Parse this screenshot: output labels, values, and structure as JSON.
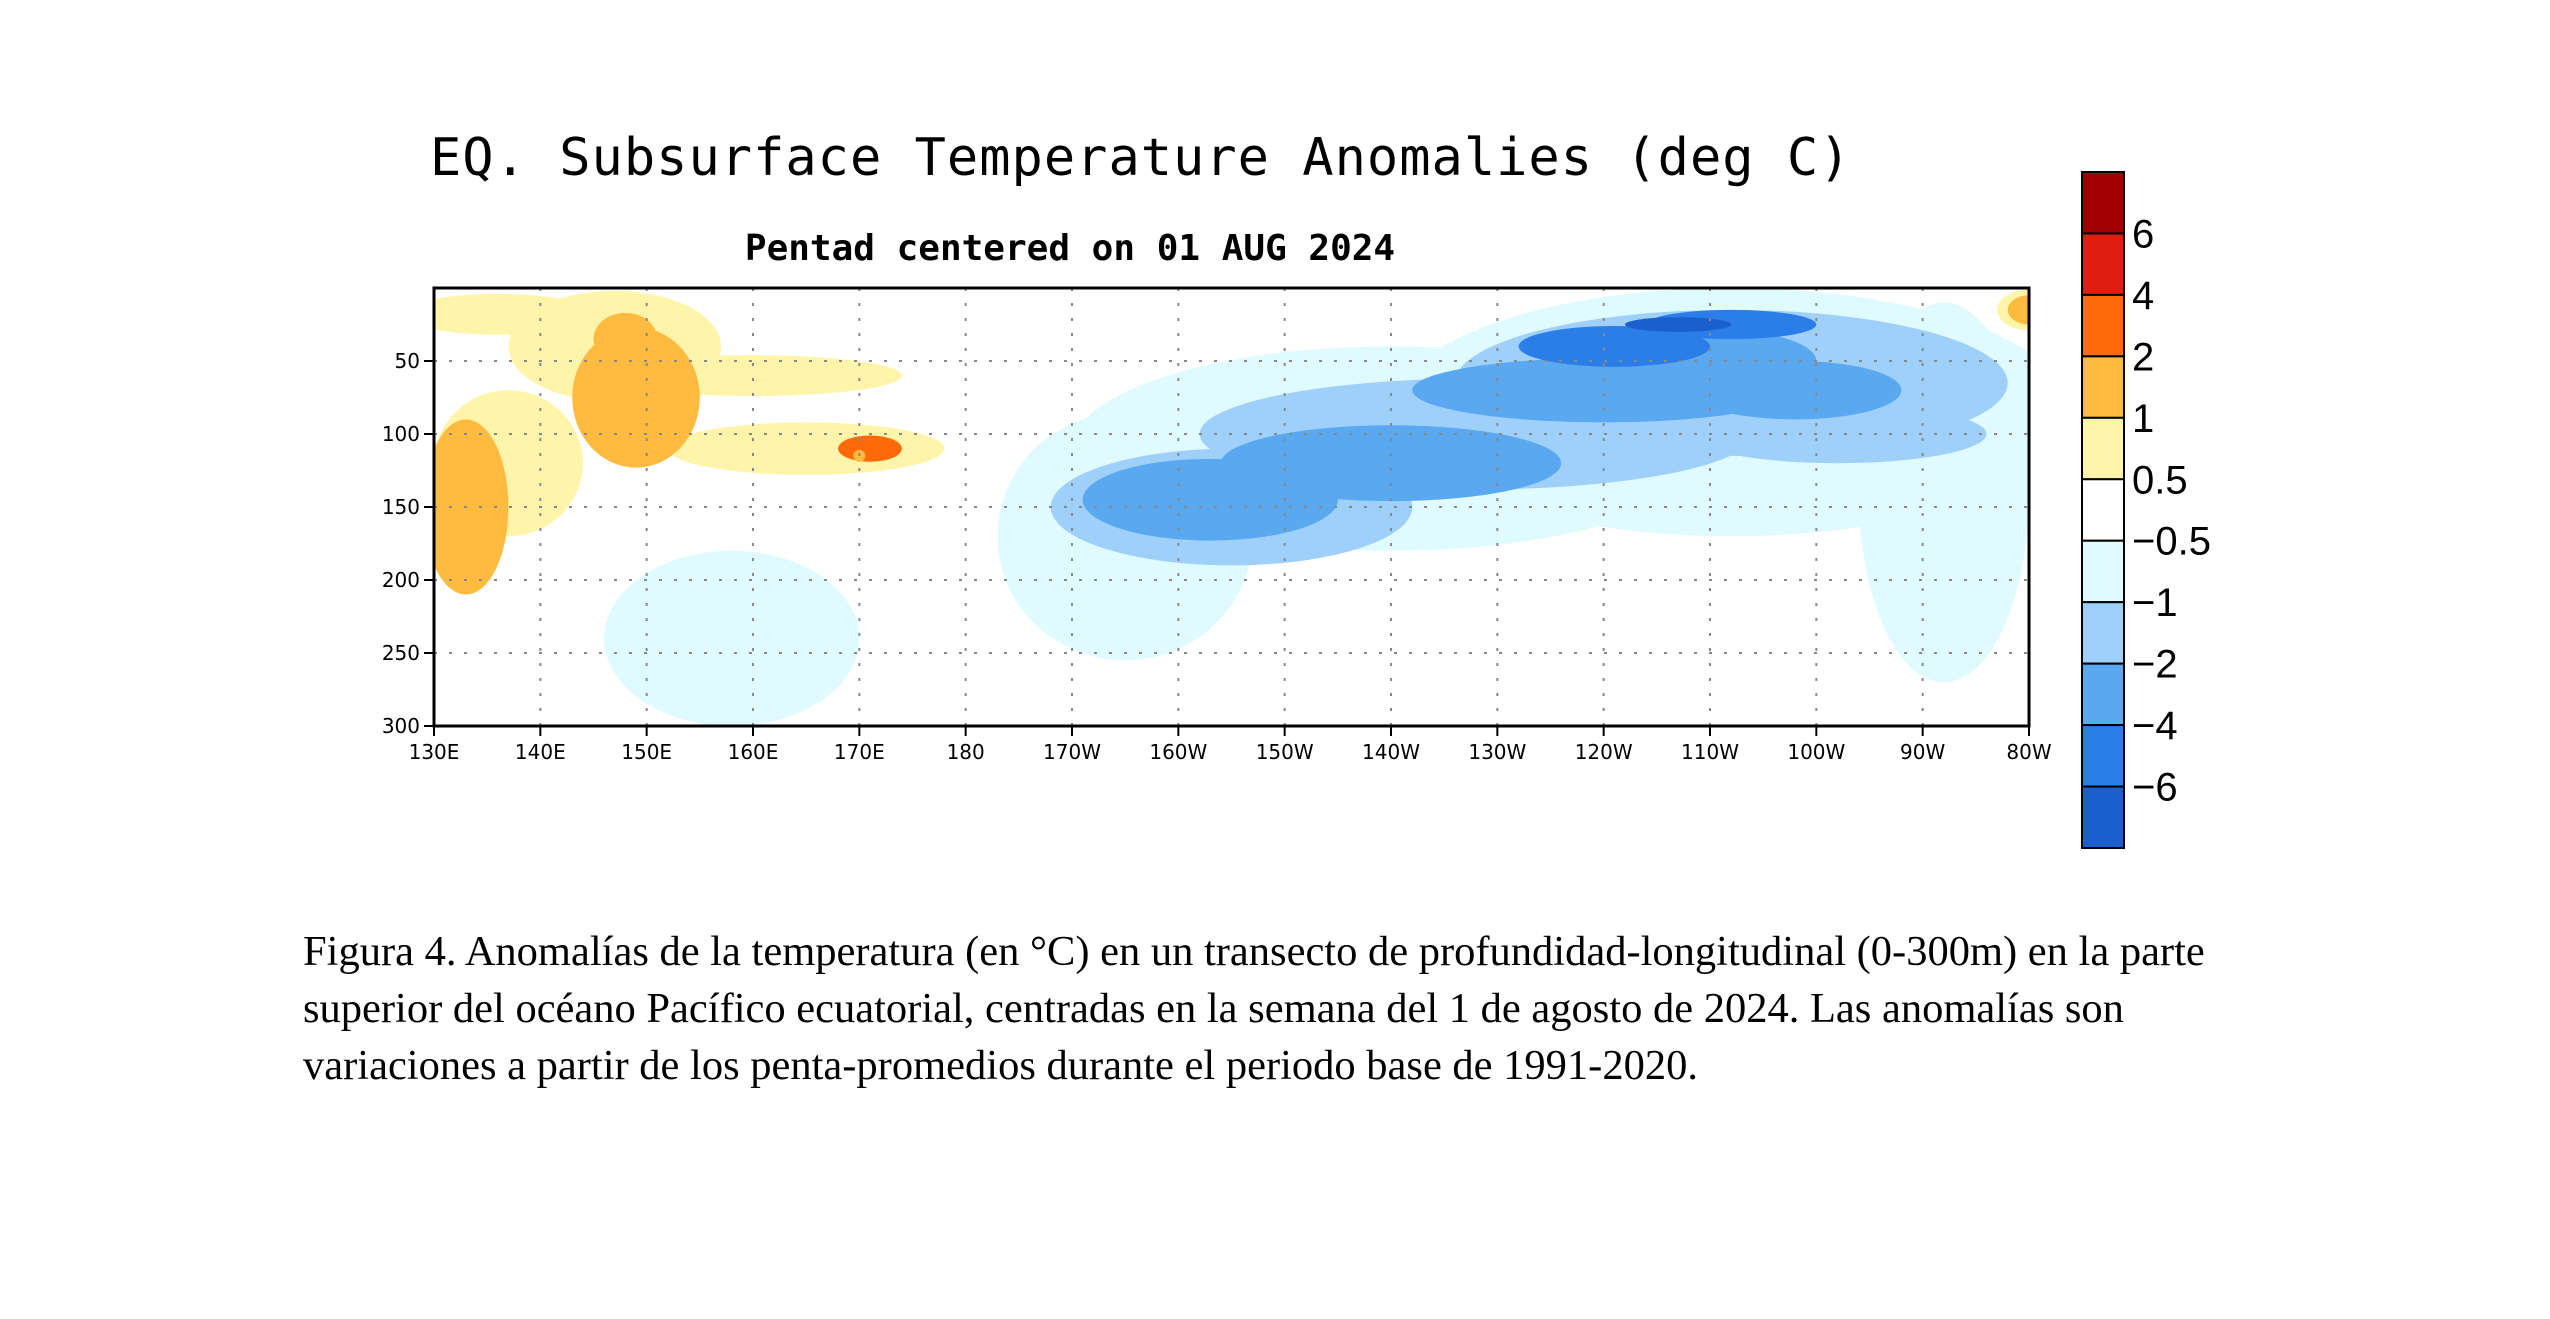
{
  "chart_data": {
    "type": "heatmap",
    "title": "EQ. Subsurface Temperature Anomalies (deg C)",
    "subtitle": "Pentad centered on 01 AUG 2024",
    "xlabel": "",
    "ylabel": "",
    "x_ticks": [
      "130E",
      "140E",
      "150E",
      "160E",
      "170E",
      "180",
      "170W",
      "160W",
      "150W",
      "140W",
      "130W",
      "120W",
      "110W",
      "100W",
      "90W",
      "80W"
    ],
    "x_range_deg_east": [
      130,
      280
    ],
    "y_ticks": [
      50,
      100,
      150,
      200,
      250,
      300
    ],
    "y_range_depth_m": [
      0,
      300
    ],
    "y_reversed": true,
    "grid": "dotted",
    "colorbar": {
      "labels": [
        "6",
        "4",
        "2",
        "1",
        "0.5",
        "−0.5",
        "−1",
        "−2",
        "−4",
        "−6"
      ],
      "levels": [
        6,
        4,
        2,
        1,
        0.5,
        -0.5,
        -1,
        -2,
        -4,
        -6
      ],
      "colors": [
        "#a00000",
        "#e01e10",
        "#ff6a0a",
        "#ffba40",
        "#fff5aa",
        "#ffffff",
        "#e0fbff",
        "#9fd0fa",
        "#5aa8f0",
        "#2b7de8",
        "#1a5fcc"
      ]
    },
    "features": [
      {
        "label": "warm anomaly",
        "center_lon_deg_east": 150,
        "center_depth_m": 70,
        "value": 1.2
      },
      {
        "label": "warm anomaly",
        "center_lon_deg_east": 132,
        "center_depth_m": 160,
        "value": 1.5
      },
      {
        "label": "warm anomaly",
        "center_lon_deg_east": 170,
        "center_depth_m": 115,
        "value": 1.2
      },
      {
        "label": "warm anomaly",
        "center_lon_deg_east": 280,
        "center_depth_m": 15,
        "value": 1.0
      },
      {
        "label": "cold anomaly",
        "center_lon_deg_east": 203,
        "center_depth_m": 145,
        "value": -2.5
      },
      {
        "label": "cold anomaly",
        "center_lon_deg_east": 240,
        "center_depth_m": 40,
        "value": -5.0
      },
      {
        "label": "cold anomaly",
        "center_lon_deg_east": 248,
        "center_depth_m": 25,
        "value": -6.0
      }
    ]
  },
  "caption": "Figura 4. Anomalías de la temperatura (en °C) en un transecto de profundidad-longitudinal (0-300m) en la parte superior del océano Pacífico ecuatorial, centradas en la semana del 1 de agosto de 2024. Las anomalías son variaciones a partir de los penta-promedios durante el periodo base de 1991-2020."
}
